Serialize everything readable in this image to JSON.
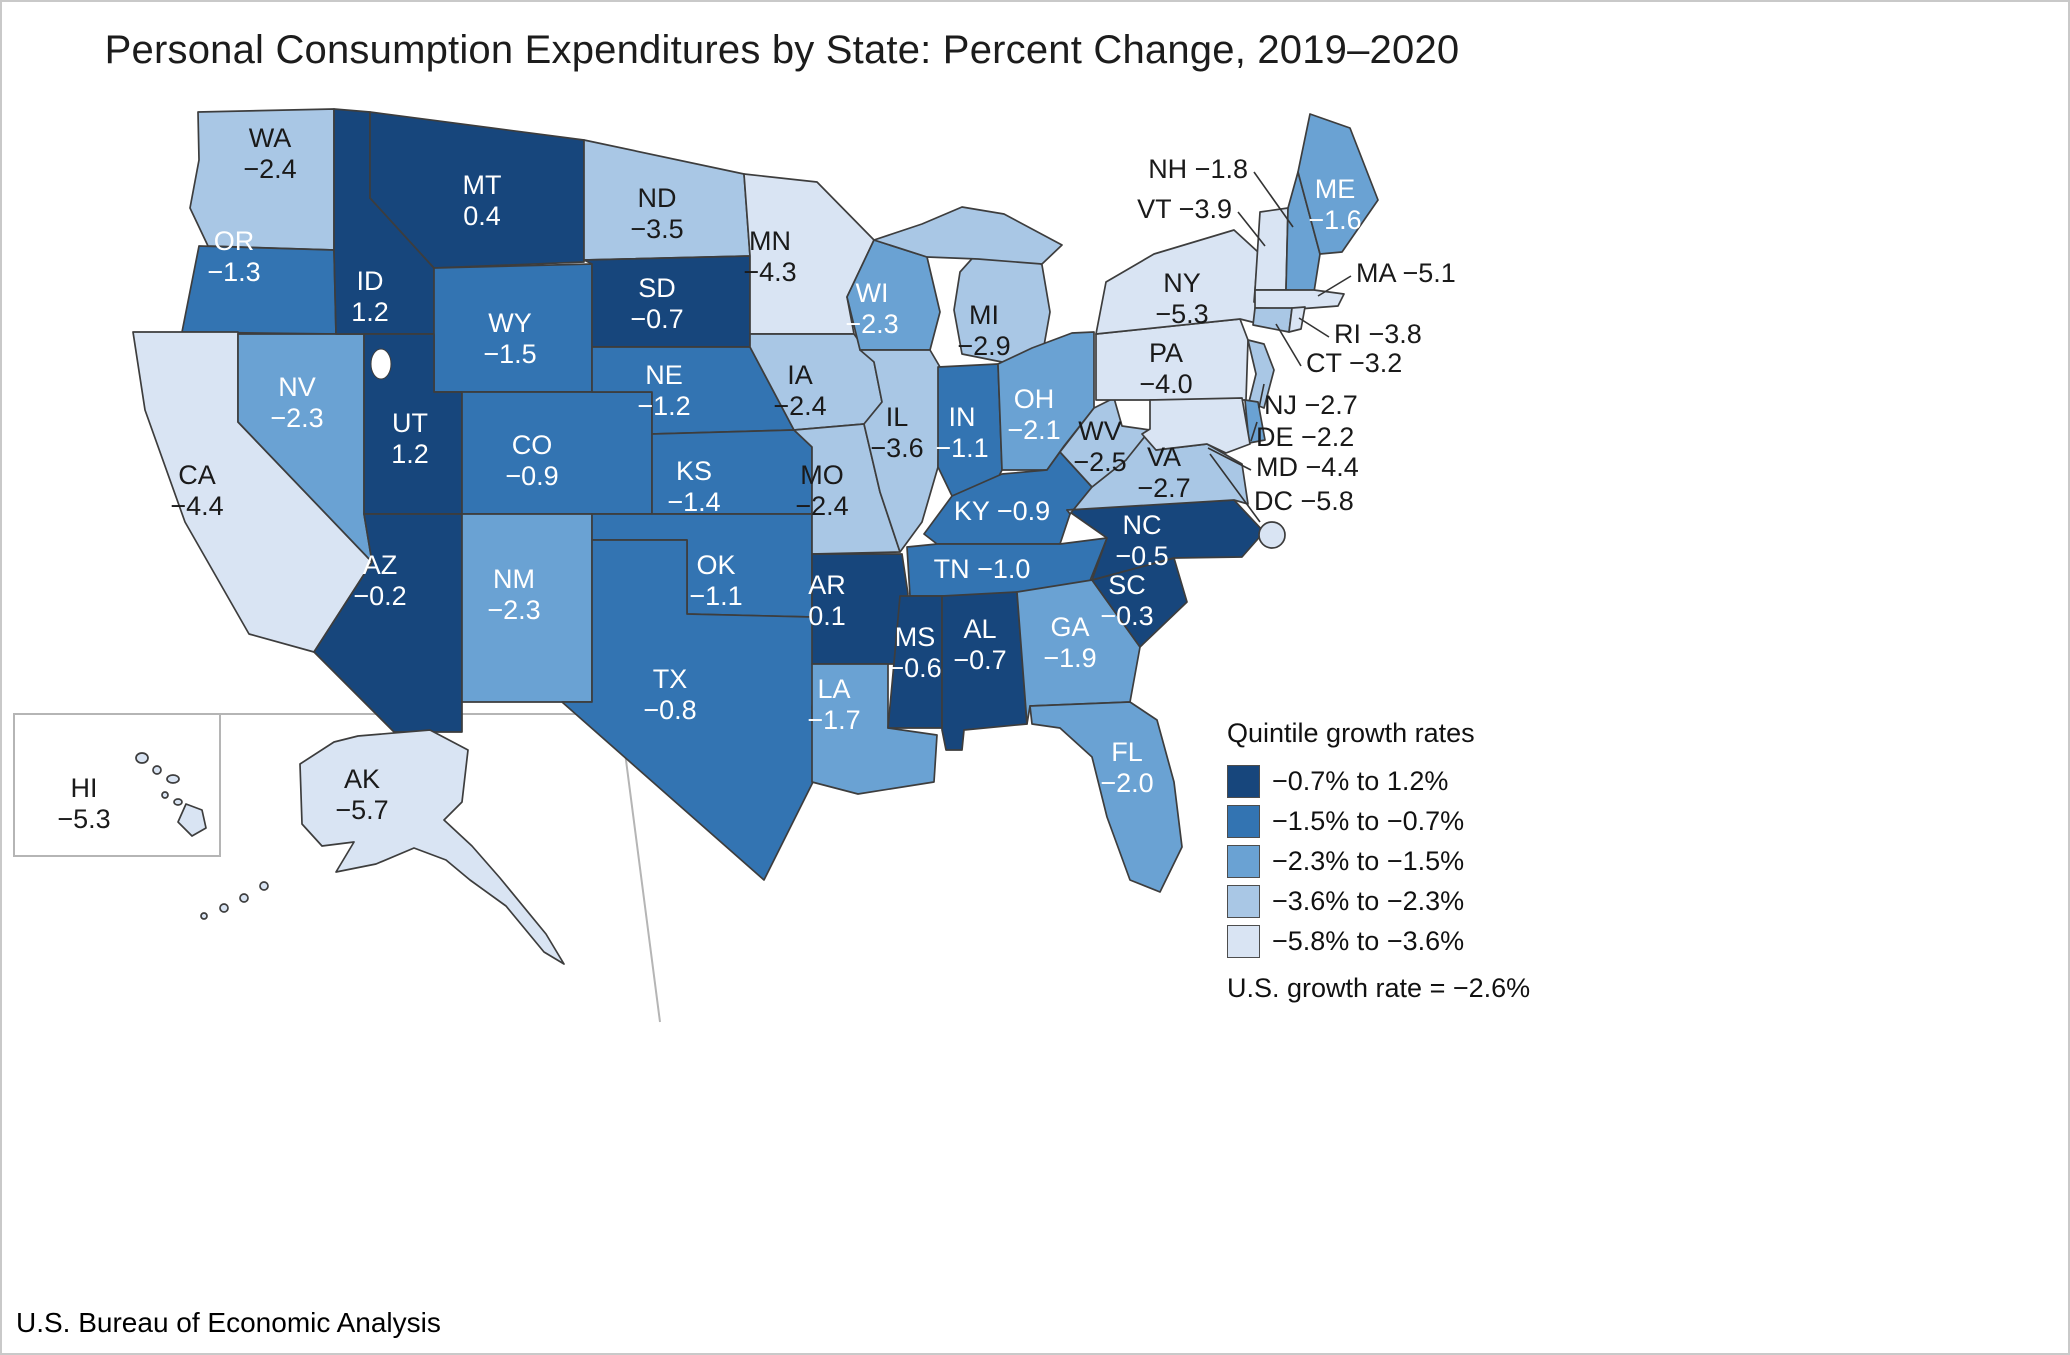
{
  "title": "Personal Consumption Expenditures by State: Percent Change, 2019–2020",
  "source": "U.S. Bureau of Economic Analysis",
  "legend": {
    "title": "Quintile growth rates",
    "items": [
      {
        "label": "−0.7% to 1.2%",
        "color": "#17467c"
      },
      {
        "label": "−1.5% to −0.7%",
        "color": "#3374b2"
      },
      {
        "label": "−2.3% to −1.5%",
        "color": "#6aa2d3"
      },
      {
        "label": "−3.6% to −2.3%",
        "color": "#a9c7e5"
      },
      {
        "label": "−5.8% to −3.6%",
        "color": "#d9e4f3"
      }
    ],
    "note": "U.S. growth rate = −2.6%"
  },
  "chart_data": {
    "type": "choropleth_map",
    "region": "United States",
    "title": "Personal Consumption Expenditures by State: Percent Change, 2019–2020",
    "unit": "%",
    "us_growth_rate": -2.6,
    "legend_position": "bottom-right",
    "states": [
      {
        "abbr": "WA",
        "value": -2.4,
        "quintile": 4
      },
      {
        "abbr": "OR",
        "value": -1.3,
        "quintile": 2
      },
      {
        "abbr": "CA",
        "value": -4.4,
        "quintile": 5
      },
      {
        "abbr": "NV",
        "value": -2.3,
        "quintile": 3
      },
      {
        "abbr": "ID",
        "value": 1.2,
        "quintile": 1
      },
      {
        "abbr": "MT",
        "value": 0.4,
        "quintile": 1
      },
      {
        "abbr": "WY",
        "value": -1.5,
        "quintile": 2
      },
      {
        "abbr": "UT",
        "value": 1.2,
        "quintile": 1
      },
      {
        "abbr": "CO",
        "value": -0.9,
        "quintile": 2
      },
      {
        "abbr": "AZ",
        "value": -0.2,
        "quintile": 1
      },
      {
        "abbr": "NM",
        "value": -2.3,
        "quintile": 3
      },
      {
        "abbr": "ND",
        "value": -3.5,
        "quintile": 4
      },
      {
        "abbr": "SD",
        "value": -0.7,
        "quintile": 1
      },
      {
        "abbr": "NE",
        "value": -1.2,
        "quintile": 2
      },
      {
        "abbr": "KS",
        "value": -1.4,
        "quintile": 2
      },
      {
        "abbr": "OK",
        "value": -1.1,
        "quintile": 2
      },
      {
        "abbr": "TX",
        "value": -0.8,
        "quintile": 2
      },
      {
        "abbr": "MN",
        "value": -4.3,
        "quintile": 5
      },
      {
        "abbr": "IA",
        "value": -2.4,
        "quintile": 4
      },
      {
        "abbr": "MO",
        "value": -2.4,
        "quintile": 4
      },
      {
        "abbr": "AR",
        "value": 0.1,
        "quintile": 1
      },
      {
        "abbr": "LA",
        "value": -1.7,
        "quintile": 3
      },
      {
        "abbr": "WI",
        "value": -2.3,
        "quintile": 3
      },
      {
        "abbr": "IL",
        "value": -3.6,
        "quintile": 4
      },
      {
        "abbr": "MI",
        "value": -2.9,
        "quintile": 4
      },
      {
        "abbr": "IN",
        "value": -1.1,
        "quintile": 2
      },
      {
        "abbr": "OH",
        "value": -2.1,
        "quintile": 3
      },
      {
        "abbr": "KY",
        "value": -0.9,
        "quintile": 2
      },
      {
        "abbr": "TN",
        "value": -1.0,
        "quintile": 2
      },
      {
        "abbr": "MS",
        "value": -0.6,
        "quintile": 1
      },
      {
        "abbr": "AL",
        "value": -0.7,
        "quintile": 1
      },
      {
        "abbr": "GA",
        "value": -1.9,
        "quintile": 3
      },
      {
        "abbr": "FL",
        "value": -2.0,
        "quintile": 3
      },
      {
        "abbr": "SC",
        "value": -0.3,
        "quintile": 1
      },
      {
        "abbr": "NC",
        "value": -0.5,
        "quintile": 1
      },
      {
        "abbr": "VA",
        "value": -2.7,
        "quintile": 4
      },
      {
        "abbr": "WV",
        "value": -2.5,
        "quintile": 4
      },
      {
        "abbr": "PA",
        "value": -4.0,
        "quintile": 5
      },
      {
        "abbr": "NY",
        "value": -5.3,
        "quintile": 5
      },
      {
        "abbr": "VT",
        "value": -3.9,
        "quintile": 5
      },
      {
        "abbr": "NH",
        "value": -1.8,
        "quintile": 3
      },
      {
        "abbr": "ME",
        "value": -1.6,
        "quintile": 3
      },
      {
        "abbr": "MA",
        "value": -5.1,
        "quintile": 5
      },
      {
        "abbr": "CT",
        "value": -3.2,
        "quintile": 4
      },
      {
        "abbr": "RI",
        "value": -3.8,
        "quintile": 5
      },
      {
        "abbr": "NJ",
        "value": -2.7,
        "quintile": 4
      },
      {
        "abbr": "DE",
        "value": -2.2,
        "quintile": 3
      },
      {
        "abbr": "MD",
        "value": -4.4,
        "quintile": 5
      },
      {
        "abbr": "DC",
        "value": -5.8,
        "quintile": 5
      },
      {
        "abbr": "AK",
        "value": -5.7,
        "quintile": 5
      },
      {
        "abbr": "HI",
        "value": -5.3,
        "quintile": 5
      }
    ]
  }
}
